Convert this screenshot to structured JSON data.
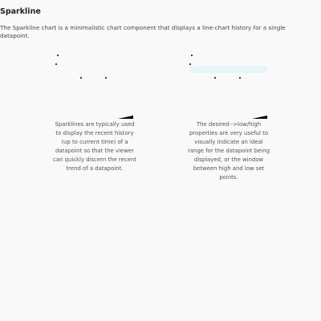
{
  "page": {
    "title": "Sparkline",
    "description": "The Sparkline chart is a minimalistic chart component that displays a line-chart history for a single datapoint."
  },
  "sparklines": [
    {
      "caption": "Sparklines are typically used to display the recent history (up to current time) of a datapoint so that the viewer can quickly discern the recent trend of a datapoint.",
      "has_range_band": false
    },
    {
      "caption": "The desired-->low/high properties are very useful to visually indicate an ideal range for the datapoint being displayed, or the window between high and low set points.",
      "has_range_band": true
    }
  ],
  "colors": {
    "background": "#f9f9f9",
    "range_band": "#e6f4f9",
    "line": "#000000"
  }
}
